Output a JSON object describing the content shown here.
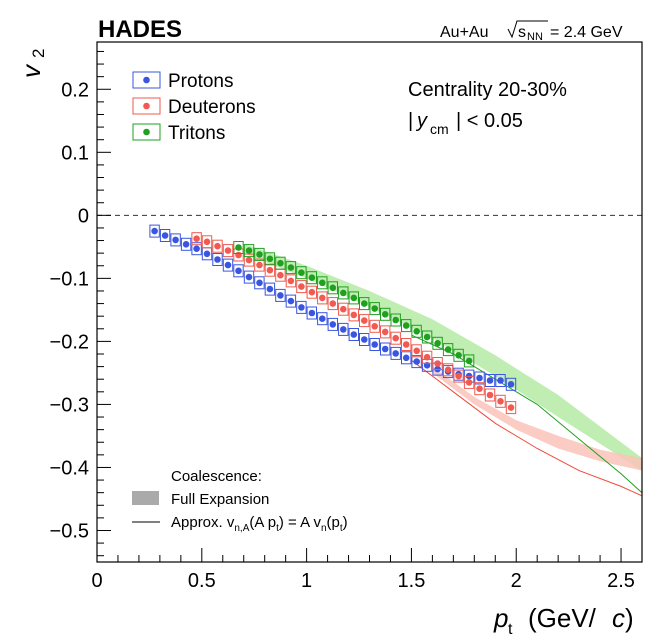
{
  "chart_data": {
    "type": "scatter",
    "experiment": "HADES",
    "system_label": "Au+Au",
    "energy_label": "= 2.4 GeV",
    "energy_symbol": "s",
    "energy_subscript": "NN",
    "xlabel_symbol": "p",
    "xlabel_subscript": "t",
    "xlabel_units_open": "(GeV/",
    "xlabel_units_c": "c",
    "xlabel_units_close": ")",
    "ylabel_symbol": "v",
    "ylabel_subscript": "2",
    "xlim": [
      0,
      2.6
    ],
    "ylim": [
      -0.55,
      0.275
    ],
    "x_ticks": [
      0,
      0.5,
      1,
      1.5,
      2,
      2.5
    ],
    "x_tick_labels": [
      "0",
      "0.5",
      "1",
      "1.5",
      "2",
      "2.5"
    ],
    "y_ticks": [
      0.2,
      0.1,
      0,
      -0.1,
      -0.2,
      -0.3,
      -0.4,
      -0.5
    ],
    "y_tick_labels": [
      "0.2",
      "0.1",
      "0",
      "−0.1",
      "−0.2",
      "−0.3",
      "−0.4",
      "−0.5"
    ],
    "grid": false,
    "zero_line": "dashed",
    "legend_position": "top-left",
    "centrality_label": "Centrality 20-30%",
    "rapidity_label_y": "y",
    "rapidity_label_sub": "cm",
    "rapidity_label_cut": "| < 0.05",
    "coalescence": {
      "title": "Coalescence:",
      "band_label": "Full Expansion",
      "line_label_prefix": "Approx. v",
      "line_label_sub1": "n,A",
      "line_label_mid": "(A p",
      "line_label_sub2": "t",
      "line_label_mid2": ") = A v",
      "line_label_sub3": "n",
      "line_label_mid3": "(p",
      "line_label_sub4": "t",
      "line_label_end": ")",
      "band_color": "#aaaaaa"
    },
    "series": [
      {
        "name": "Protons",
        "color": "#3a56e0",
        "x": [
          0.275,
          0.325,
          0.375,
          0.425,
          0.475,
          0.525,
          0.575,
          0.625,
          0.675,
          0.725,
          0.775,
          0.825,
          0.875,
          0.925,
          0.975,
          1.025,
          1.075,
          1.125,
          1.175,
          1.225,
          1.275,
          1.325,
          1.375,
          1.425,
          1.475,
          1.525,
          1.575,
          1.625,
          1.675,
          1.725,
          1.775,
          1.825,
          1.875,
          1.925,
          1.975
        ],
        "y": [
          -0.025,
          -0.032,
          -0.039,
          -0.046,
          -0.053,
          -0.061,
          -0.07,
          -0.079,
          -0.088,
          -0.098,
          -0.107,
          -0.117,
          -0.127,
          -0.136,
          -0.146,
          -0.155,
          -0.164,
          -0.173,
          -0.181,
          -0.189,
          -0.197,
          -0.205,
          -0.212,
          -0.219,
          -0.226,
          -0.232,
          -0.238,
          -0.244,
          -0.248,
          -0.252,
          -0.255,
          -0.258,
          -0.262,
          -0.262,
          -0.268
        ]
      },
      {
        "name": "Deuterons",
        "color": "#f05a50",
        "x": [
          0.475,
          0.525,
          0.575,
          0.625,
          0.675,
          0.725,
          0.775,
          0.825,
          0.875,
          0.925,
          0.975,
          1.025,
          1.075,
          1.125,
          1.175,
          1.225,
          1.275,
          1.325,
          1.375,
          1.425,
          1.475,
          1.525,
          1.575,
          1.625,
          1.675,
          1.725,
          1.775,
          1.825,
          1.875,
          1.925,
          1.975
        ],
        "y": [
          -0.037,
          -0.042,
          -0.049,
          -0.056,
          -0.063,
          -0.071,
          -0.079,
          -0.087,
          -0.095,
          -0.104,
          -0.113,
          -0.122,
          -0.131,
          -0.14,
          -0.149,
          -0.158,
          -0.167,
          -0.176,
          -0.185,
          -0.195,
          -0.205,
          -0.215,
          -0.225,
          -0.235,
          -0.245,
          -0.255,
          -0.265,
          -0.275,
          -0.285,
          -0.295,
          -0.305
        ]
      },
      {
        "name": "Tritons",
        "color": "#1fa01f",
        "x": [
          0.675,
          0.725,
          0.775,
          0.825,
          0.875,
          0.925,
          0.975,
          1.025,
          1.075,
          1.125,
          1.175,
          1.225,
          1.275,
          1.325,
          1.375,
          1.425,
          1.475,
          1.525,
          1.575,
          1.625,
          1.675,
          1.725,
          1.775
        ],
        "y": [
          -0.051,
          -0.056,
          -0.062,
          -0.069,
          -0.076,
          -0.083,
          -0.091,
          -0.099,
          -0.107,
          -0.115,
          -0.123,
          -0.131,
          -0.14,
          -0.148,
          -0.157,
          -0.166,
          -0.175,
          -0.184,
          -0.193,
          -0.203,
          -0.213,
          -0.222,
          -0.231
        ]
      }
    ],
    "model_bands": [
      {
        "name": "Tritons",
        "color": "#b5eba5",
        "x": [
          0.7,
          1.0,
          1.3,
          1.6,
          1.9,
          2.2,
          2.6
        ],
        "lo": [
          -0.06,
          -0.1,
          -0.145,
          -0.195,
          -0.255,
          -0.32,
          -0.405
        ],
        "hi": [
          -0.045,
          -0.08,
          -0.12,
          -0.165,
          -0.222,
          -0.285,
          -0.385
        ]
      },
      {
        "name": "Deuterons",
        "color": "#f9c3b8",
        "x": [
          1.6,
          1.8,
          2.0,
          2.2,
          2.4,
          2.6
        ],
        "lo": [
          -0.25,
          -0.3,
          -0.34,
          -0.37,
          -0.39,
          -0.405
        ],
        "hi": [
          -0.24,
          -0.288,
          -0.325,
          -0.35,
          -0.372,
          -0.385
        ]
      }
    ],
    "model_lines": [
      {
        "name": "Deuterons",
        "color": "#f04a3a",
        "x": [
          1.5,
          1.7,
          1.9,
          2.1,
          2.3,
          2.5,
          2.6
        ],
        "y": [
          -0.23,
          -0.28,
          -0.33,
          -0.37,
          -0.405,
          -0.43,
          -0.445
        ]
      },
      {
        "name": "Tritons",
        "color": "#1fa01f",
        "x": [
          1.5,
          1.7,
          1.9,
          2.1,
          2.3,
          2.5,
          2.6
        ],
        "y": [
          -0.19,
          -0.22,
          -0.26,
          -0.3,
          -0.355,
          -0.41,
          -0.44
        ]
      }
    ]
  }
}
